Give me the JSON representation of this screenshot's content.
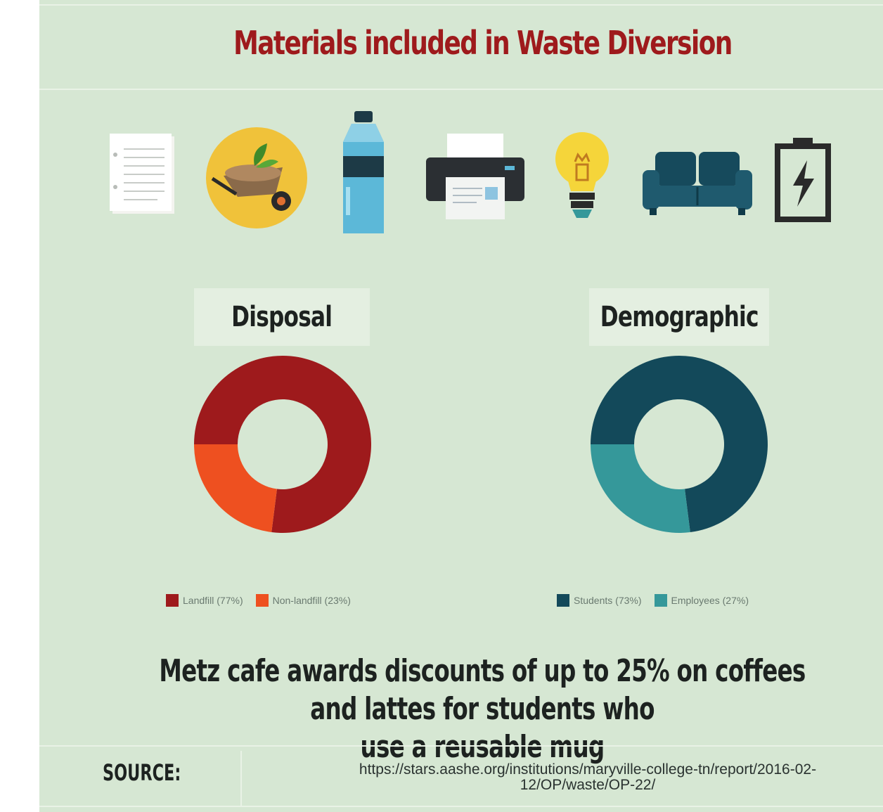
{
  "title": "Materials included in Waste Diversion",
  "icons": [
    "paper-icon",
    "compost-wheelbarrow-icon",
    "water-bottle-icon",
    "printer-icon",
    "light-bulb-icon",
    "couch-icon",
    "battery-icon"
  ],
  "colors": {
    "background": "#d6e7d3",
    "title": "#9e1a1c",
    "landfill": "#9e1a1c",
    "non_landfill": "#ee5020",
    "students": "#13495a",
    "employees": "#35989a"
  },
  "chart_data": [
    {
      "type": "pie",
      "title": "Disposal",
      "categories": [
        "Landfill (77%)",
        "Non-landfill (23%)"
      ],
      "values": [
        77,
        23
      ],
      "legend_position": "bottom"
    },
    {
      "type": "pie",
      "title": "Demographic",
      "categories": [
        "Students (73%)",
        "Employees (27%)"
      ],
      "values": [
        73,
        27
      ],
      "legend_position": "bottom"
    }
  ],
  "footer": {
    "line1": "Metz cafe awards discounts of up to 25% on coffees and lattes for students who",
    "line2": "use a reusable mug"
  },
  "source": {
    "label": "SOURCE:",
    "url_line1": "https://stars.aashe.org/institutions/maryville-college-tn/report/2016-02-",
    "url_line2": "12/OP/waste/OP-22/"
  }
}
